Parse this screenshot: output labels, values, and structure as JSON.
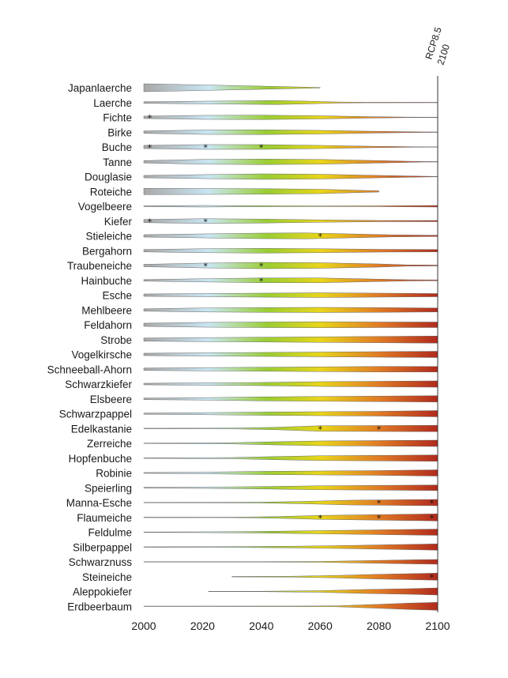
{
  "chart_data": {
    "type": "violin",
    "title": "",
    "xlabel": "",
    "ylabel": "",
    "scenario_label": [
      "RCP8.5",
      "2100"
    ],
    "x_ticks": [
      "2000",
      "2020",
      "2040",
      "2060",
      "2080",
      "2100"
    ],
    "xlim": [
      2000,
      2100
    ],
    "colors": [
      "#a8a8a8",
      "#c9e6f3",
      "#9acd32",
      "#e8d51a",
      "#e07b25",
      "#b02a1e"
    ],
    "species": [
      {
        "name": "Japanlaerche",
        "profile": [
          [
            2000,
            10
          ],
          [
            2010,
            8.5
          ],
          [
            2020,
            7
          ],
          [
            2030,
            5.5
          ],
          [
            2040,
            4
          ],
          [
            2050,
            2.3
          ],
          [
            2060,
            0.6
          ]
        ],
        "stars": []
      },
      {
        "name": "Laerche",
        "profile": [
          [
            2000,
            2
          ],
          [
            2015,
            3
          ],
          [
            2030,
            4
          ],
          [
            2045,
            5
          ],
          [
            2055,
            3.5
          ],
          [
            2065,
            1.5
          ],
          [
            2075,
            0.6
          ],
          [
            2100,
            0.4
          ]
        ],
        "stars": []
      },
      {
        "name": "Fichte",
        "profile": [
          [
            2000,
            3
          ],
          [
            2020,
            5
          ],
          [
            2040,
            5.5
          ],
          [
            2060,
            4
          ],
          [
            2075,
            2
          ],
          [
            2090,
            0.6
          ],
          [
            2100,
            0.4
          ]
        ],
        "stars": [
          2002
        ]
      },
      {
        "name": "Birke",
        "profile": [
          [
            2000,
            3
          ],
          [
            2020,
            5.5
          ],
          [
            2040,
            6
          ],
          [
            2060,
            4.5
          ],
          [
            2080,
            2
          ],
          [
            2095,
            0.6
          ],
          [
            2100,
            0.4
          ]
        ],
        "stars": []
      },
      {
        "name": "Buche",
        "profile": [
          [
            2000,
            4
          ],
          [
            2020,
            6
          ],
          [
            2040,
            6
          ],
          [
            2060,
            4
          ],
          [
            2080,
            1.5
          ],
          [
            2092,
            0.6
          ],
          [
            2100,
            0.4
          ]
        ],
        "stars": [
          2002,
          2021,
          2040
        ]
      },
      {
        "name": "Tanne",
        "profile": [
          [
            2000,
            3
          ],
          [
            2020,
            6
          ],
          [
            2040,
            7
          ],
          [
            2060,
            6
          ],
          [
            2080,
            3
          ],
          [
            2095,
            0.6
          ],
          [
            2100,
            0.4
          ]
        ],
        "stars": []
      },
      {
        "name": "Douglasie",
        "profile": [
          [
            2000,
            3
          ],
          [
            2020,
            5
          ],
          [
            2040,
            7
          ],
          [
            2060,
            6
          ],
          [
            2080,
            3
          ],
          [
            2095,
            1
          ],
          [
            2100,
            0.5
          ]
        ],
        "stars": []
      },
      {
        "name": "Roteiche",
        "profile": [
          [
            2000,
            8
          ],
          [
            2020,
            7.5
          ],
          [
            2040,
            7
          ],
          [
            2060,
            5.5
          ],
          [
            2070,
            3.5
          ],
          [
            2080,
            1.5
          ]
        ],
        "stars": []
      },
      {
        "name": "Vogelbeere",
        "profile": [
          [
            2000,
            1
          ],
          [
            2010,
            1.5
          ],
          [
            2020,
            2
          ],
          [
            2030,
            1.5
          ],
          [
            2045,
            1
          ],
          [
            2060,
            0.8
          ],
          [
            2080,
            1
          ],
          [
            2100,
            2
          ]
        ],
        "stars": []
      },
      {
        "name": "Kiefer",
        "profile": [
          [
            2000,
            4
          ],
          [
            2020,
            6
          ],
          [
            2040,
            5
          ],
          [
            2060,
            3
          ],
          [
            2080,
            1.5
          ],
          [
            2100,
            1.5
          ]
        ],
        "stars": [
          2002,
          2021
        ]
      },
      {
        "name": "Stieleiche",
        "profile": [
          [
            2000,
            3
          ],
          [
            2020,
            5
          ],
          [
            2040,
            7
          ],
          [
            2055,
            7.5
          ],
          [
            2070,
            5
          ],
          [
            2085,
            2.5
          ],
          [
            2100,
            1.5
          ]
        ],
        "stars": [
          2060
        ]
      },
      {
        "name": "Bergahorn",
        "profile": [
          [
            2000,
            3
          ],
          [
            2020,
            5
          ],
          [
            2040,
            6
          ],
          [
            2060,
            5
          ],
          [
            2080,
            3.5
          ],
          [
            2100,
            3
          ]
        ],
        "stars": []
      },
      {
        "name": "Traubeneiche",
        "profile": [
          [
            2000,
            3
          ],
          [
            2020,
            6
          ],
          [
            2040,
            8
          ],
          [
            2060,
            7
          ],
          [
            2080,
            4
          ],
          [
            2090,
            1.5
          ],
          [
            2100,
            1
          ]
        ],
        "stars": [
          2021,
          2040
        ]
      },
      {
        "name": "Hainbuche",
        "profile": [
          [
            2000,
            2
          ],
          [
            2020,
            4
          ],
          [
            2040,
            6
          ],
          [
            2060,
            6
          ],
          [
            2080,
            3
          ],
          [
            2090,
            1.5
          ],
          [
            2100,
            1
          ]
        ],
        "stars": [
          2040
        ]
      },
      {
        "name": "Esche",
        "profile": [
          [
            2000,
            3
          ],
          [
            2020,
            4
          ],
          [
            2040,
            5
          ],
          [
            2060,
            6
          ],
          [
            2080,
            5
          ],
          [
            2100,
            4
          ]
        ],
        "stars": []
      },
      {
        "name": "Mehlbeere",
        "profile": [
          [
            2000,
            3
          ],
          [
            2020,
            5
          ],
          [
            2040,
            6
          ],
          [
            2060,
            6.5
          ],
          [
            2080,
            6
          ],
          [
            2100,
            5
          ]
        ],
        "stars": []
      },
      {
        "name": "Feldahorn",
        "profile": [
          [
            2000,
            4
          ],
          [
            2020,
            6
          ],
          [
            2040,
            7
          ],
          [
            2060,
            7.5
          ],
          [
            2080,
            7
          ],
          [
            2100,
            7
          ]
        ],
        "stars": []
      },
      {
        "name": "Strobe",
        "profile": [
          [
            2000,
            4
          ],
          [
            2020,
            5
          ],
          [
            2040,
            6
          ],
          [
            2060,
            7
          ],
          [
            2080,
            8
          ],
          [
            2100,
            9
          ]
        ],
        "stars": []
      },
      {
        "name": "Vogelkirsche",
        "profile": [
          [
            2000,
            3
          ],
          [
            2020,
            4
          ],
          [
            2040,
            5
          ],
          [
            2060,
            6
          ],
          [
            2080,
            7
          ],
          [
            2100,
            8
          ]
        ],
        "stars": []
      },
      {
        "name": "Schneeball-Ahorn",
        "profile": [
          [
            2000,
            3
          ],
          [
            2020,
            4
          ],
          [
            2040,
            5
          ],
          [
            2060,
            6
          ],
          [
            2080,
            7
          ],
          [
            2100,
            7
          ]
        ],
        "stars": []
      },
      {
        "name": "Schwarzkiefer",
        "profile": [
          [
            2000,
            2
          ],
          [
            2020,
            3
          ],
          [
            2040,
            4
          ],
          [
            2060,
            6
          ],
          [
            2080,
            7
          ],
          [
            2100,
            8
          ]
        ],
        "stars": []
      },
      {
        "name": "Elsbeere",
        "profile": [
          [
            2000,
            2
          ],
          [
            2020,
            3
          ],
          [
            2040,
            5
          ],
          [
            2060,
            6
          ],
          [
            2080,
            7
          ],
          [
            2100,
            8
          ]
        ],
        "stars": []
      },
      {
        "name": "Schwarzpappel",
        "profile": [
          [
            2000,
            1.5
          ],
          [
            2020,
            2.5
          ],
          [
            2040,
            4
          ],
          [
            2060,
            5
          ],
          [
            2080,
            6
          ],
          [
            2100,
            8
          ]
        ],
        "stars": []
      },
      {
        "name": "Edelkastanie",
        "profile": [
          [
            2000,
            0.5
          ],
          [
            2030,
            1
          ],
          [
            2045,
            3
          ],
          [
            2060,
            7
          ],
          [
            2080,
            7.5
          ],
          [
            2100,
            8
          ]
        ],
        "stars": [
          2060,
          2080
        ]
      },
      {
        "name": "Zerreiche",
        "profile": [
          [
            2000,
            0.5
          ],
          [
            2030,
            1.5
          ],
          [
            2045,
            4
          ],
          [
            2060,
            6
          ],
          [
            2080,
            7
          ],
          [
            2100,
            8
          ]
        ],
        "stars": []
      },
      {
        "name": "Hopfenbuche",
        "profile": [
          [
            2000,
            0.5
          ],
          [
            2030,
            1.5
          ],
          [
            2045,
            4
          ],
          [
            2060,
            6
          ],
          [
            2080,
            7
          ],
          [
            2100,
            8
          ]
        ],
        "stars": []
      },
      {
        "name": "Robinie",
        "profile": [
          [
            2000,
            1
          ],
          [
            2020,
            2
          ],
          [
            2040,
            4
          ],
          [
            2060,
            5
          ],
          [
            2080,
            6
          ],
          [
            2100,
            8
          ]
        ],
        "stars": []
      },
      {
        "name": "Speierling",
        "profile": [
          [
            2000,
            1
          ],
          [
            2020,
            1.5
          ],
          [
            2040,
            3
          ],
          [
            2060,
            5
          ],
          [
            2080,
            6
          ],
          [
            2100,
            7
          ]
        ],
        "stars": []
      },
      {
        "name": "Manna-Esche",
        "profile": [
          [
            2000,
            0.5
          ],
          [
            2040,
            1
          ],
          [
            2055,
            3
          ],
          [
            2070,
            6
          ],
          [
            2085,
            7
          ],
          [
            2100,
            8
          ]
        ],
        "stars": [
          2080,
          2098
        ]
      },
      {
        "name": "Flaumeiche",
        "profile": [
          [
            2000,
            0.5
          ],
          [
            2030,
            0.5
          ],
          [
            2045,
            2
          ],
          [
            2060,
            5
          ],
          [
            2080,
            7
          ],
          [
            2100,
            9
          ]
        ],
        "stars": [
          2060,
          2080,
          2098
        ]
      },
      {
        "name": "Feldulme",
        "profile": [
          [
            2000,
            0.5
          ],
          [
            2020,
            1
          ],
          [
            2040,
            2
          ],
          [
            2060,
            4
          ],
          [
            2080,
            6
          ],
          [
            2100,
            8
          ]
        ],
        "stars": []
      },
      {
        "name": "Silberpappel",
        "profile": [
          [
            2000,
            0.5
          ],
          [
            2030,
            1
          ],
          [
            2050,
            2
          ],
          [
            2070,
            4
          ],
          [
            2085,
            6
          ],
          [
            2100,
            8
          ]
        ],
        "stars": []
      },
      {
        "name": "Schwarznuss",
        "profile": [
          [
            2000,
            0.5
          ],
          [
            2040,
            0.5
          ],
          [
            2060,
            1
          ],
          [
            2075,
            3
          ],
          [
            2090,
            5
          ],
          [
            2100,
            6
          ]
        ],
        "stars": []
      },
      {
        "name": "Steineiche",
        "profile": [
          [
            2030,
            0.5
          ],
          [
            2050,
            1
          ],
          [
            2065,
            3
          ],
          [
            2080,
            6
          ],
          [
            2090,
            7.5
          ],
          [
            2100,
            9
          ]
        ],
        "stars": [
          2098
        ]
      },
      {
        "name": "Aleppokiefer",
        "profile": [
          [
            2022,
            0.3
          ],
          [
            2040,
            0.5
          ],
          [
            2060,
            2
          ],
          [
            2075,
            5
          ],
          [
            2090,
            7
          ],
          [
            2100,
            9
          ]
        ],
        "stars": []
      },
      {
        "name": "Erdbeerbaum",
        "profile": [
          [
            2000,
            0.3
          ],
          [
            2050,
            0.5
          ],
          [
            2065,
            1
          ],
          [
            2080,
            5
          ],
          [
            2090,
            8
          ],
          [
            2100,
            10
          ]
        ],
        "stars": []
      }
    ]
  }
}
